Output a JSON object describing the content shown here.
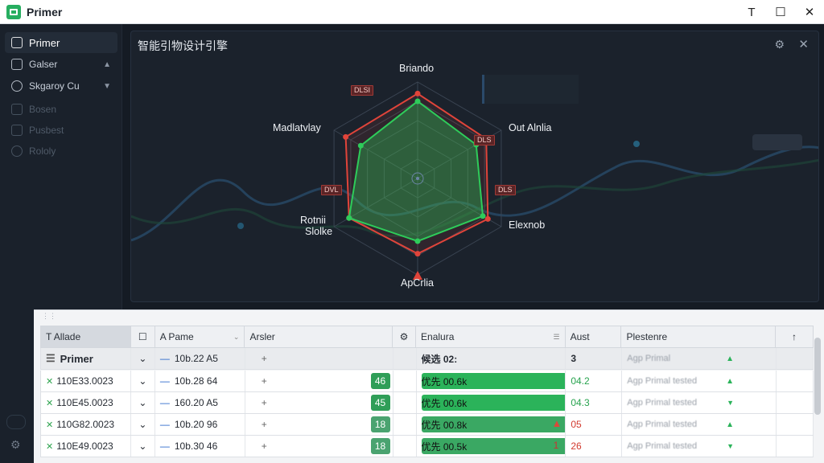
{
  "app": {
    "title": "Primer"
  },
  "window": {
    "minimize": "T",
    "maximize": "☐",
    "close": "✕"
  },
  "sidebar": {
    "items": [
      {
        "label": "Primer",
        "icon": "grid-icon",
        "active": true
      },
      {
        "label": "Galser",
        "icon": "pencil-icon",
        "chevron": "▲"
      },
      {
        "label": "Skgaroy Cu",
        "icon": "gear-icon",
        "chevron": "▼"
      },
      {
        "label": "Bosen",
        "icon": "list-icon"
      },
      {
        "label": "Pusbest",
        "icon": "file-icon"
      },
      {
        "label": "Rololy",
        "icon": "settings-icon"
      }
    ],
    "bottom_icon": "⚙"
  },
  "panel": {
    "title": "智能引物设计引擎",
    "gear": "⚙",
    "close": "✕"
  },
  "radar": {
    "axes": [
      "Briando",
      "Out Alnlia",
      "Elexnob",
      "ApCrlia",
      "Rotnii Slolke",
      "Madlatvlay"
    ],
    "axis_label_line2": "Slolke",
    "axis_label_line1": "Rotnii",
    "series": [
      {
        "name": "",
        "color": "#e0443a",
        "values": [
          0.88,
          0.82,
          0.84,
          0.78,
          0.82,
          0.86
        ]
      },
      {
        "name": "",
        "color": "#2ecc5a",
        "values": [
          0.8,
          0.7,
          0.78,
          0.65,
          0.82,
          0.68
        ]
      }
    ],
    "tags": [
      "DLSI",
      "DLS",
      "DVL",
      "DLS"
    ]
  },
  "table": {
    "headers": [
      "T Allade",
      "☐",
      "A Pame",
      "Arsler",
      "⚙",
      "Enalura",
      "Aust",
      "Plestenre",
      "↑"
    ],
    "group": {
      "name": "Primer",
      "pame": "10b.22 A5",
      "enalura": "候选 02:",
      "aust": "3"
    },
    "rows": [
      {
        "id": "110E33.0023",
        "pame": "10b.28 64",
        "score": "46",
        "bar": "优先 00.6k",
        "aust": "04.2",
        "aust_color": "green",
        "pleste": "Agp Primal tested",
        "arrow": "▲"
      },
      {
        "id": "110E45.0023",
        "pame": "160.20 A5",
        "score": "45",
        "bar": "优先 00.6k",
        "aust": "04.3",
        "aust_color": "green",
        "pleste": "Agp Primal tested",
        "arrow": "▼"
      },
      {
        "id": "110G82.0023",
        "pame": "10b.20 96",
        "score": "18",
        "bar": "优先 00.8k",
        "aust": "05",
        "aust_color": "red",
        "pleste": "Agp Primal tested",
        "arrow": "▲",
        "warn": "▲"
      },
      {
        "id": "110E49.0023",
        "pame": "10b.30 46",
        "score": "18",
        "bar": "优先 00.5k",
        "aust": "26",
        "aust_color": "red",
        "pleste": "Agp Primal tested",
        "arrow": "▼",
        "flag": "1"
      }
    ]
  }
}
